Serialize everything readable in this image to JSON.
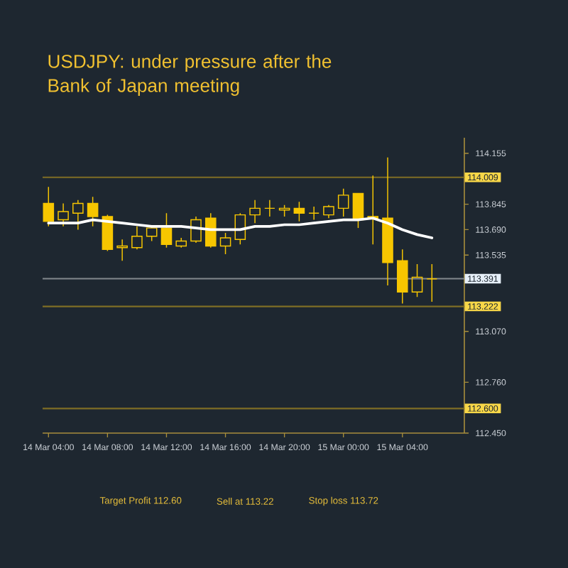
{
  "chart_data": {
    "type": "candlestick",
    "title": "USDJPY: under pressure after the Bank of Japan meeting",
    "categories": [
      "14 Mar 04:00",
      null,
      null,
      null,
      "14 Mar 08:00",
      null,
      null,
      null,
      "14 Mar 12:00",
      null,
      null,
      null,
      "14 Mar 16:00",
      null,
      null,
      null,
      "14 Mar 20:00",
      null,
      null,
      null,
      "15 Mar 00:00",
      null,
      null,
      null,
      "15 Mar 04:00",
      null,
      null
    ],
    "ohlc": [
      [
        113.85,
        113.95,
        113.71,
        113.74
      ],
      [
        113.75,
        113.85,
        113.71,
        113.8
      ],
      [
        113.79,
        113.87,
        113.69,
        113.85
      ],
      [
        113.85,
        113.89,
        113.71,
        113.77
      ],
      [
        113.77,
        113.78,
        113.56,
        113.57
      ],
      [
        113.58,
        113.63,
        113.5,
        113.59
      ],
      [
        113.58,
        113.71,
        113.57,
        113.65
      ],
      [
        113.65,
        113.71,
        113.62,
        113.7
      ],
      [
        113.7,
        113.79,
        113.58,
        113.6
      ],
      [
        113.59,
        113.64,
        113.58,
        113.62
      ],
      [
        113.62,
        113.77,
        113.61,
        113.75
      ],
      [
        113.76,
        113.79,
        113.58,
        113.59
      ],
      [
        113.59,
        113.67,
        113.54,
        113.64
      ],
      [
        113.63,
        113.79,
        113.6,
        113.78
      ],
      [
        113.78,
        113.87,
        113.73,
        113.82
      ],
      [
        113.82,
        113.87,
        113.77,
        113.82
      ],
      [
        113.81,
        113.84,
        113.77,
        113.82
      ],
      [
        113.82,
        113.86,
        113.74,
        113.79
      ],
      [
        113.79,
        113.83,
        113.75,
        113.79
      ],
      [
        113.78,
        113.84,
        113.76,
        113.83
      ],
      [
        113.82,
        113.94,
        113.77,
        113.9
      ],
      [
        113.91,
        113.91,
        113.7,
        113.75
      ],
      [
        113.77,
        114.02,
        113.6,
        113.76
      ],
      [
        113.76,
        114.13,
        113.35,
        113.49
      ],
      [
        113.5,
        113.57,
        113.24,
        113.31
      ],
      [
        113.31,
        113.48,
        113.28,
        113.4
      ],
      [
        113.39,
        113.48,
        113.25,
        113.39
      ]
    ],
    "color": "#f7c600",
    "series": [
      {
        "type": "line",
        "color": "#ffffff",
        "values": [
          113.73,
          113.73,
          113.73,
          113.75,
          113.74,
          113.73,
          113.72,
          113.71,
          113.71,
          113.71,
          113.7,
          113.69,
          113.69,
          113.69,
          113.71,
          113.71,
          113.72,
          113.72,
          113.73,
          113.74,
          113.75,
          113.75,
          113.76,
          113.73,
          113.69,
          113.66,
          113.64
        ]
      }
    ],
    "ylim": [
      112.45,
      114.25
    ],
    "yticks": [
      114.155,
      113.845,
      {
        "value": 113.69,
        "label": "113.690"
      },
      113.535,
      {
        "value": 113.07,
        "label": "113.070"
      },
      {
        "value": 112.76,
        "label": "112.760"
      },
      {
        "value": 112.45,
        "label": "112.450"
      }
    ],
    "ref_lines": [
      {
        "axis": "y",
        "value": 114.009,
        "label": "114.009",
        "color": "#7f6e25"
      },
      {
        "axis": "y",
        "value": 113.391,
        "label": "113.391",
        "color": "#83888d"
      },
      {
        "axis": "y",
        "value": 113.222,
        "label": "113.222",
        "color": "#7f6e25"
      },
      {
        "axis": "y",
        "value": 112.6,
        "label": "112.600",
        "color": "#7f6e25"
      }
    ],
    "annotations": [
      "Target Profit 112.60",
      "Sell at 113.22",
      "Stop loss 113.72"
    ]
  }
}
